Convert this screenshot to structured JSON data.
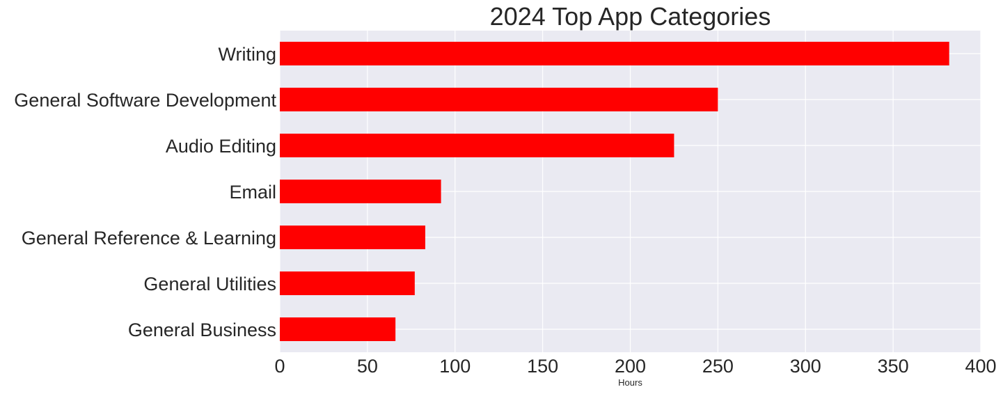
{
  "chart_data": {
    "type": "bar",
    "orientation": "horizontal",
    "title": "2024 Top App Categories",
    "xlabel": "Hours",
    "ylabel": "",
    "categories": [
      "Writing",
      "General Software Development",
      "Audio Editing",
      "Email",
      "General Reference & Learning",
      "General Utilities",
      "General Business"
    ],
    "values": [
      382,
      250,
      225,
      92,
      83,
      77,
      66
    ],
    "xlim": [
      0,
      400
    ],
    "xticks": [
      0,
      50,
      100,
      150,
      200,
      250,
      300,
      350,
      400
    ],
    "grid": true,
    "colors": {
      "bar": "#ff0000",
      "plot_background": "#eaeaf2",
      "grid": "#ffffff",
      "text": "#262626"
    }
  }
}
